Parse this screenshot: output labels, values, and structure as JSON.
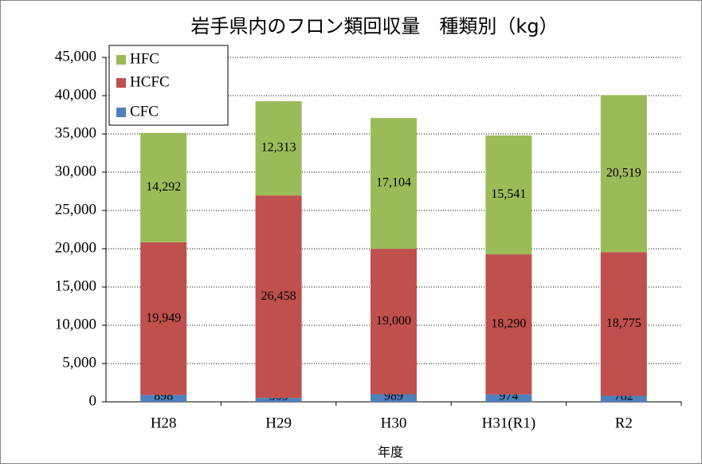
{
  "chart_data": {
    "type": "stacked_bar",
    "title": "岩手県内のフロン類回収量　種類別（kg）",
    "x_label": "年度",
    "categories": [
      "H28",
      "H29",
      "H30",
      "H31(R1)",
      "R2"
    ],
    "series": [
      {
        "name": "CFC",
        "color": "#4f81bd",
        "values": [
          898,
          505,
          989,
          974,
          782
        ],
        "value_labels": [
          "898",
          "505",
          "989",
          "974",
          "782"
        ]
      },
      {
        "name": "HCFC",
        "color": "#c0504d",
        "values": [
          19949,
          26458,
          19000,
          18290,
          18775
        ],
        "value_labels": [
          "19,949",
          "26,458",
          "19,000",
          "18,290",
          "18,775"
        ]
      },
      {
        "name": "HFC",
        "color": "#9bbb59",
        "values": [
          14292,
          12313,
          17104,
          15541,
          20519
        ],
        "value_labels": [
          "14,292",
          "12,313",
          "17,104",
          "15,541",
          "20,519"
        ]
      }
    ],
    "ylim": [
      0,
      45000
    ],
    "yticks": [
      0,
      {
        "value": 5000,
        "label": "5,000"
      },
      {
        "value": 10000,
        "label": "10,000"
      },
      {
        "value": 15000,
        "label": "15,000"
      },
      {
        "value": 20000,
        "label": "20,000"
      },
      {
        "value": 25000,
        "label": "25,000"
      },
      {
        "value": 30000,
        "label": "30,000"
      },
      {
        "value": 35000,
        "label": "35,000"
      },
      {
        "value": 40000,
        "label": "40,000"
      },
      {
        "value": 45000,
        "label": "45,000"
      }
    ],
    "grid": true,
    "legend": "top-left"
  }
}
